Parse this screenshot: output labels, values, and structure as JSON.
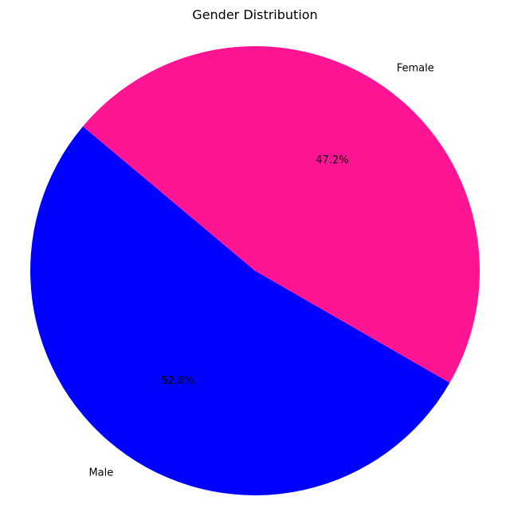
{
  "chart_data": {
    "type": "pie",
    "title": "Gender Distribution",
    "slices": [
      {
        "label": "Male",
        "value": 52.8,
        "percent_label": "52.8%",
        "color": "#0000ff"
      },
      {
        "label": "Female",
        "value": 47.2,
        "percent_label": "47.2%",
        "color": "#ff1493"
      }
    ],
    "start_angle_deg": 140,
    "direction": "counterclockwise",
    "legend": "none"
  }
}
